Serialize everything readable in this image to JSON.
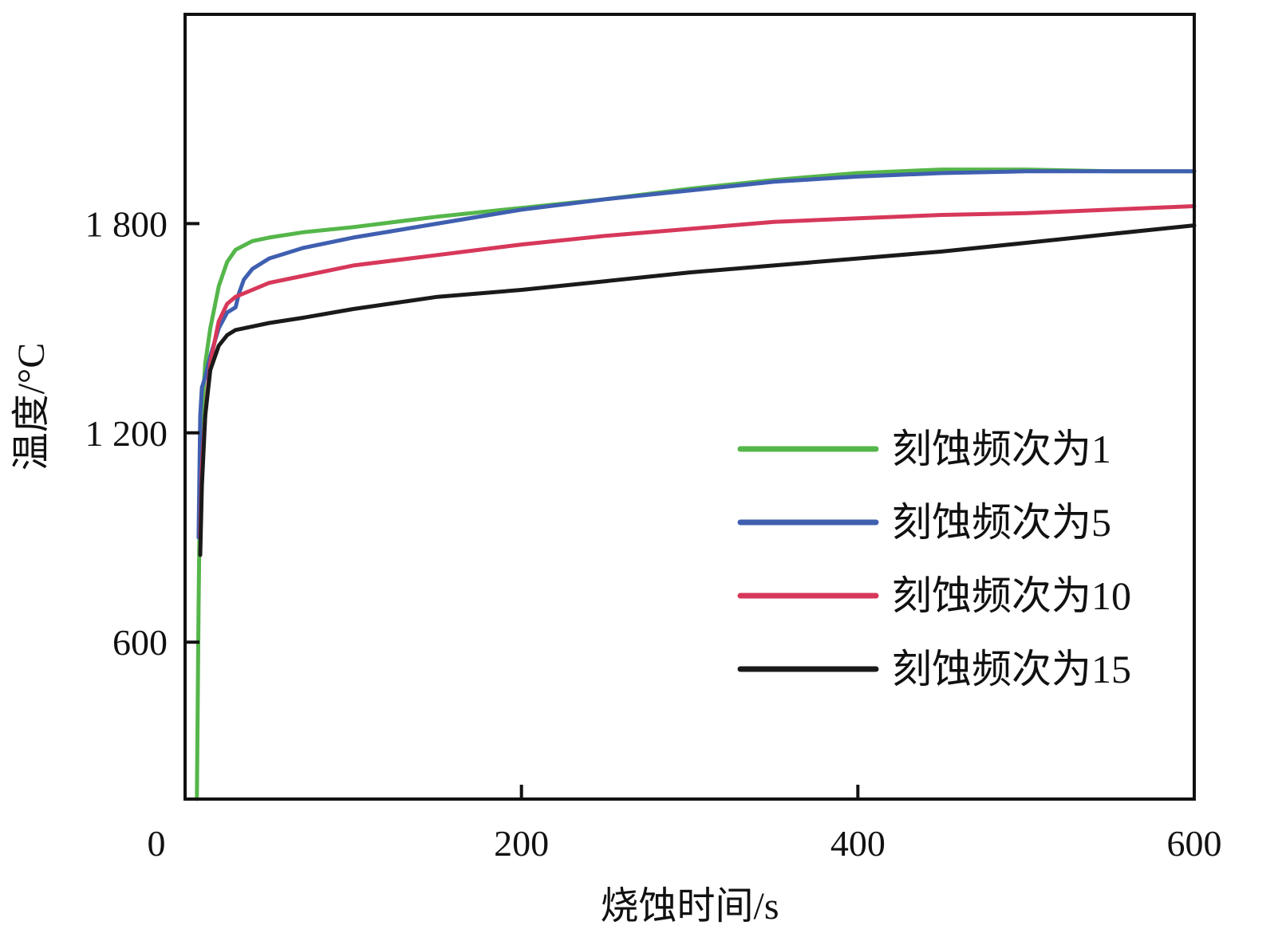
{
  "chart_data": {
    "type": "line",
    "xlabel": "烧蚀时间/s",
    "ylabel": "温度/°C",
    "xlim": [
      0,
      600
    ],
    "ylim": [
      150,
      2400
    ],
    "x_ticks": [
      {
        "value": 0,
        "label": "0"
      },
      {
        "value": 200,
        "label": "200"
      },
      {
        "value": 400,
        "label": "400"
      },
      {
        "value": 600,
        "label": "600"
      }
    ],
    "y_ticks": [
      {
        "value": 600,
        "label": "600"
      },
      {
        "value": 1200,
        "label": "1 200"
      },
      {
        "value": 1800,
        "label": "1 800"
      }
    ],
    "grid": false,
    "legend_position": "bottom-right",
    "series": [
      {
        "name": "刻蚀频次为1",
        "color": "#55b64a",
        "x": [
          7,
          8,
          9,
          10,
          12,
          15,
          20,
          25,
          30,
          40,
          50,
          70,
          100,
          150,
          200,
          250,
          300,
          350,
          400,
          450,
          500,
          550,
          600
        ],
        "y": [
          150,
          700,
          1100,
          1250,
          1400,
          1500,
          1620,
          1690,
          1725,
          1750,
          1760,
          1775,
          1790,
          1820,
          1845,
          1870,
          1900,
          1925,
          1945,
          1955,
          1955,
          1950,
          1950
        ]
      },
      {
        "name": "刻蚀频次为5",
        "color": "#3f5fb0",
        "x": [
          8,
          9,
          10,
          12,
          15,
          20,
          25,
          30,
          32,
          35,
          40,
          50,
          70,
          100,
          150,
          200,
          250,
          300,
          350,
          400,
          450,
          500,
          550,
          600
        ],
        "y": [
          900,
          1250,
          1330,
          1360,
          1420,
          1500,
          1545,
          1560,
          1600,
          1640,
          1670,
          1700,
          1730,
          1760,
          1800,
          1840,
          1870,
          1895,
          1920,
          1935,
          1945,
          1950,
          1950,
          1950
        ]
      },
      {
        "name": "刻蚀频次为10",
        "color": "#d7385a",
        "x": [
          9,
          10,
          12,
          15,
          20,
          25,
          30,
          40,
          50,
          70,
          100,
          150,
          200,
          250,
          300,
          350,
          400,
          450,
          500,
          550,
          600
        ],
        "y": [
          900,
          1100,
          1250,
          1400,
          1520,
          1570,
          1590,
          1610,
          1630,
          1650,
          1680,
          1710,
          1740,
          1765,
          1785,
          1805,
          1815,
          1825,
          1830,
          1840,
          1850
        ]
      },
      {
        "name": "刻蚀频次为15",
        "color": "#1a1a1a",
        "x": [
          9,
          10,
          12,
          15,
          20,
          25,
          30,
          40,
          50,
          70,
          100,
          150,
          200,
          250,
          300,
          350,
          400,
          450,
          500,
          550,
          600
        ],
        "y": [
          850,
          1050,
          1250,
          1380,
          1450,
          1480,
          1495,
          1505,
          1515,
          1530,
          1555,
          1590,
          1610,
          1635,
          1660,
          1680,
          1700,
          1720,
          1745,
          1770,
          1795
        ]
      }
    ]
  }
}
